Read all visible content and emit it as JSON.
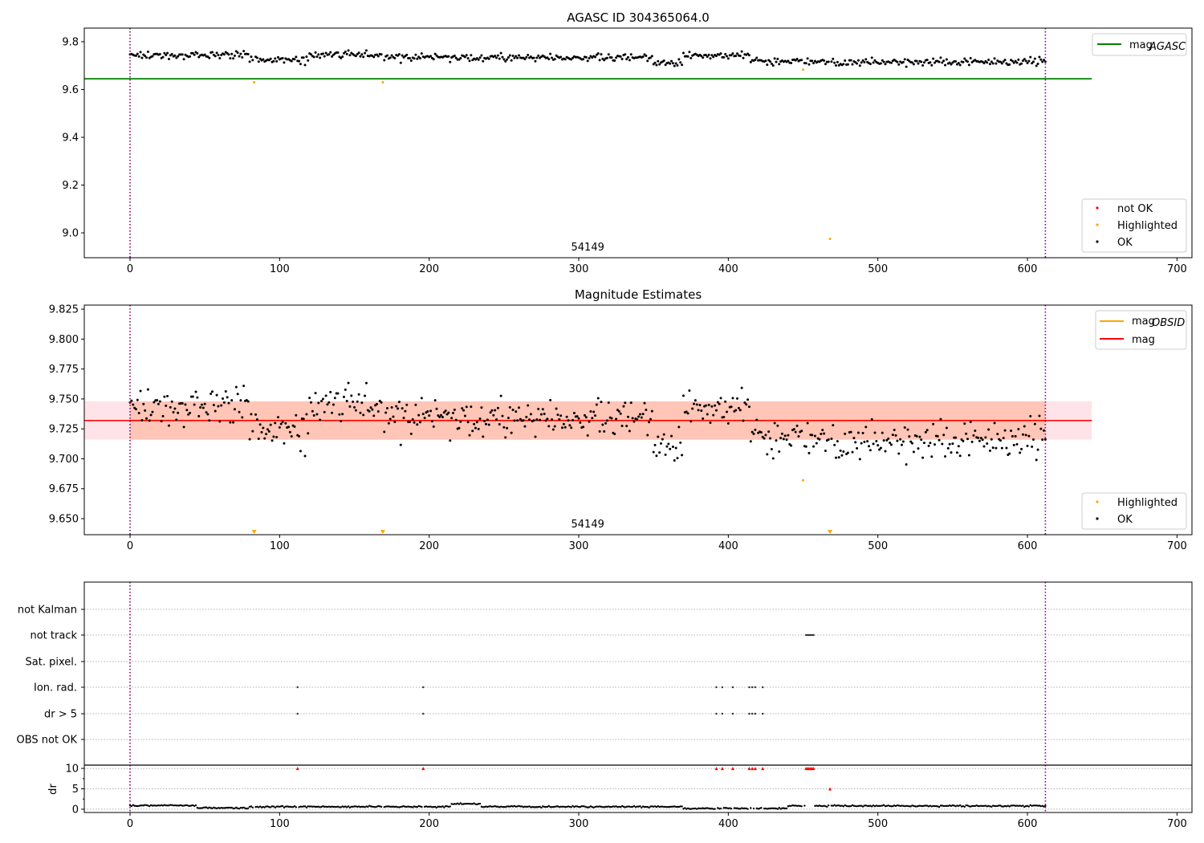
{
  "chart_data": [
    {
      "type": "scatter",
      "title": "AGASC ID 304365064.0",
      "xlim": [
        -30.6,
        710
      ],
      "ylim": [
        8.896,
        9.857
      ],
      "xticks": [
        0,
        100,
        200,
        300,
        400,
        500,
        600,
        700
      ],
      "yticks": [
        9.0,
        9.2,
        9.4,
        9.6,
        9.8
      ],
      "ytick_labels": [
        "9.0",
        "9.2",
        "9.4",
        "9.6",
        "9.8"
      ],
      "annotation": "54149",
      "annotation_x": 306,
      "vlines": [
        0,
        612
      ],
      "mag_agasc": 9.645,
      "mag_agasc_xrange": [
        -30.6,
        643
      ],
      "legend_top": [
        "mag",
        "AGASC"
      ],
      "legend_bottom": [
        "not OK",
        "Highlighted",
        "OK"
      ],
      "highlighted": [
        {
          "x": 83,
          "y": 9.63
        },
        {
          "x": 169,
          "y": 9.63
        },
        {
          "x": 450,
          "y": 9.683
        },
        {
          "x": 468,
          "y": 8.975
        }
      ]
    },
    {
      "type": "scatter",
      "title": "Magnitude Estimates",
      "xlim": [
        -30.6,
        710
      ],
      "ylim": [
        9.6366,
        9.8284
      ],
      "xticks": [
        0,
        100,
        200,
        300,
        400,
        500,
        600,
        700
      ],
      "yticks": [
        9.65,
        9.675,
        9.7,
        9.725,
        9.75,
        9.775,
        9.8,
        9.825
      ],
      "ytick_labels": [
        "9.650",
        "9.675",
        "9.700",
        "9.725",
        "9.750",
        "9.775",
        "9.800",
        "9.825"
      ],
      "annotation": "54149",
      "annotation_x": 306,
      "mag": 9.732,
      "mag_band": [
        9.716,
        9.748
      ],
      "mag_obsid": 9.732,
      "legend_top": [
        [
          "mag",
          "OBSID"
        ],
        [
          "mag",
          ""
        ]
      ],
      "legend_bottom": [
        "Highlighted",
        "OK"
      ],
      "highlighted": [
        {
          "x": 450,
          "y": 9.682
        }
      ],
      "highlighted_offscale_below": [
        83,
        169,
        468
      ]
    },
    {
      "type": "scatter",
      "title": "",
      "flag_labels": [
        "not Kalman",
        "not track",
        "Sat. pixel.",
        "Ion. rad.",
        "dr > 5",
        "OBS not OK"
      ],
      "flags": {
        "not Kalman": [],
        "not track": [
          452,
          453,
          454,
          455,
          456,
          457
        ],
        "Sat. pixel.": [],
        "Ion. rad.": [
          112,
          196,
          392,
          396,
          403,
          414,
          416,
          418,
          423
        ],
        "dr > 5": [
          112,
          196,
          392,
          396,
          403,
          414,
          416,
          418,
          423
        ],
        "OBS not OK": []
      },
      "dr_ylabel": "dr",
      "dr_yticks": [
        0,
        5,
        10
      ],
      "dr_ytick_labels": [
        "0",
        "5",
        "10"
      ],
      "dr_ylim": [
        -0.8,
        10.8
      ],
      "dr_clipped_points": [
        {
          "x": 112,
          "y": 10
        },
        {
          "x": 196,
          "y": 10
        },
        {
          "x": 392,
          "y": 10
        },
        {
          "x": 396,
          "y": 10
        },
        {
          "x": 403,
          "y": 10
        },
        {
          "x": 414,
          "y": 10
        },
        {
          "x": 416,
          "y": 10
        },
        {
          "x": 418,
          "y": 10
        },
        {
          "x": 423,
          "y": 10
        },
        {
          "x": 452,
          "y": 10
        },
        {
          "x": 453,
          "y": 10
        },
        {
          "x": 454,
          "y": 10
        },
        {
          "x": 455,
          "y": 10
        },
        {
          "x": 456,
          "y": 10
        },
        {
          "x": 457,
          "y": 10
        },
        {
          "x": 468,
          "y": 5
        }
      ],
      "xticks": [
        0,
        100,
        200,
        300,
        400,
        500,
        600,
        700
      ]
    }
  ],
  "series_model": {
    "n_points": 613,
    "mag_levels": [
      [
        0,
        9.745
      ],
      [
        80,
        9.722
      ],
      [
        120,
        9.745
      ],
      [
        170,
        9.734
      ],
      [
        350,
        9.712
      ],
      [
        370,
        9.745
      ],
      [
        415,
        9.72
      ],
      [
        450,
        9.716
      ]
    ],
    "mag_noise": 0.011,
    "dr_levels": [
      [
        0,
        0.9
      ],
      [
        45,
        0.3
      ],
      [
        80,
        0.6
      ],
      [
        215,
        1.3
      ],
      [
        235,
        0.6
      ],
      [
        370,
        0.2
      ],
      [
        440,
        0.8
      ]
    ],
    "dr_noise": 0.12
  },
  "colors": {
    "ok": "#000000",
    "highlighted": "#ffa500",
    "not_ok": "#ff0000",
    "agasc": "#008000",
    "mag": "#ff0000",
    "obsid": "#ffa500",
    "vline": "#800080",
    "band": "#ffc0cb",
    "obsband": "#ffa07a"
  }
}
